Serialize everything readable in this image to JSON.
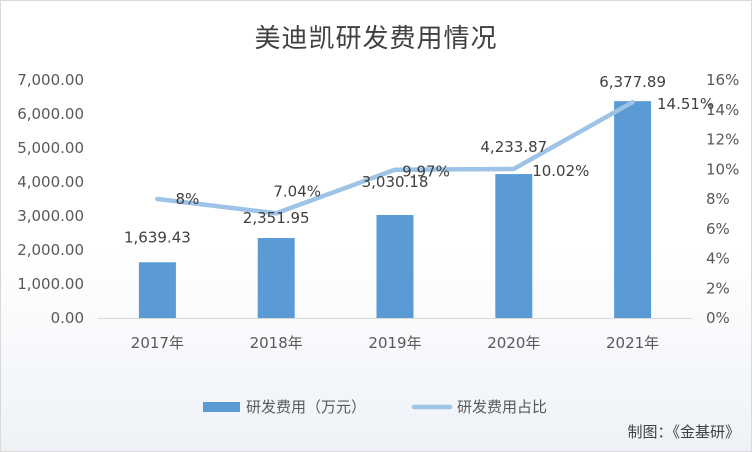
{
  "chart_data": {
    "type": "bar+line",
    "title": "美迪凯研发费用情况",
    "categories": [
      "2017年",
      "2018年",
      "2019年",
      "2020年",
      "2021年"
    ],
    "series": [
      {
        "name": "研发费用（万元）",
        "type": "bar",
        "axis": "left",
        "values": [
          1639.43,
          2351.95,
          3030.18,
          4233.87,
          6377.89
        ],
        "labels": [
          "1,639.43",
          "2,351.95",
          "3,030.18",
          "4,233.87",
          "6,377.89"
        ],
        "color": "#5b9bd5"
      },
      {
        "name": "研发费用占比",
        "type": "line",
        "axis": "right",
        "values": [
          8,
          7.04,
          9.97,
          10.02,
          14.51
        ],
        "labels": [
          "8%",
          "7.04%",
          "9.97%",
          "10.02%",
          "14.51%"
        ],
        "color": "#9dc3e6"
      }
    ],
    "y_left": {
      "min": 0,
      "max": 7000,
      "ticks": [
        "0.00",
        "1,000.00",
        "2,000.00",
        "3,000.00",
        "4,000.00",
        "5,000.00",
        "6,000.00",
        "7,000.00"
      ]
    },
    "y_right": {
      "min": 0,
      "max": 16,
      "ticks": [
        "0%",
        "2%",
        "4%",
        "6%",
        "8%",
        "10%",
        "12%",
        "14%",
        "16%"
      ]
    },
    "legend_position": "bottom",
    "grid": false
  },
  "credit": "制图：《金基研》"
}
